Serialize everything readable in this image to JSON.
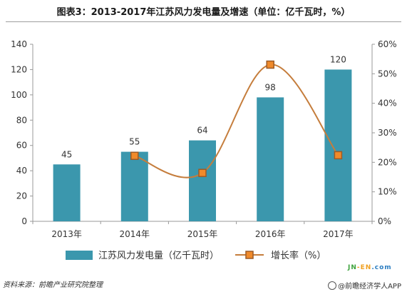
{
  "title": "图表3：2013-2017年江苏风力发电量及增速（单位：亿千瓦时，%）",
  "source": "资料来源：前瞻产业研究院整理",
  "credit": "@前瞻经济学人APP",
  "logo_text": "JN-EN.com",
  "colors": {
    "bar": "#3b97ad",
    "line": "#c57d3c",
    "marker_fill": "#f08a2a",
    "marker_stroke": "#9c5a26",
    "axis": "#999999",
    "text": "#333333"
  },
  "chart_data": {
    "type": "bar",
    "title": "图表3：2013-2017年江苏风力发电量及增速（单位：亿千瓦时，%）",
    "categories": [
      "2013年",
      "2014年",
      "2015年",
      "2016年",
      "2017年"
    ],
    "series": [
      {
        "name": "江苏风力发电量（亿千瓦时）",
        "type": "bar",
        "axis": "left",
        "values": [
          45,
          55,
          64,
          98,
          120
        ]
      },
      {
        "name": "增长率（%）",
        "type": "line",
        "axis": "right",
        "values": [
          null,
          22.2,
          16.4,
          53.1,
          22.4
        ]
      }
    ],
    "y_left": {
      "ylim": [
        0,
        140
      ],
      "ticks": [
        "0",
        "20",
        "40",
        "60",
        "80",
        "100",
        "120",
        "140"
      ]
    },
    "y_right": {
      "ylim": [
        0,
        60
      ],
      "ticks": [
        "0%",
        "10%",
        "20%",
        "30%",
        "40%",
        "50%",
        "60%"
      ]
    },
    "grid": false,
    "legend": "bottom"
  }
}
